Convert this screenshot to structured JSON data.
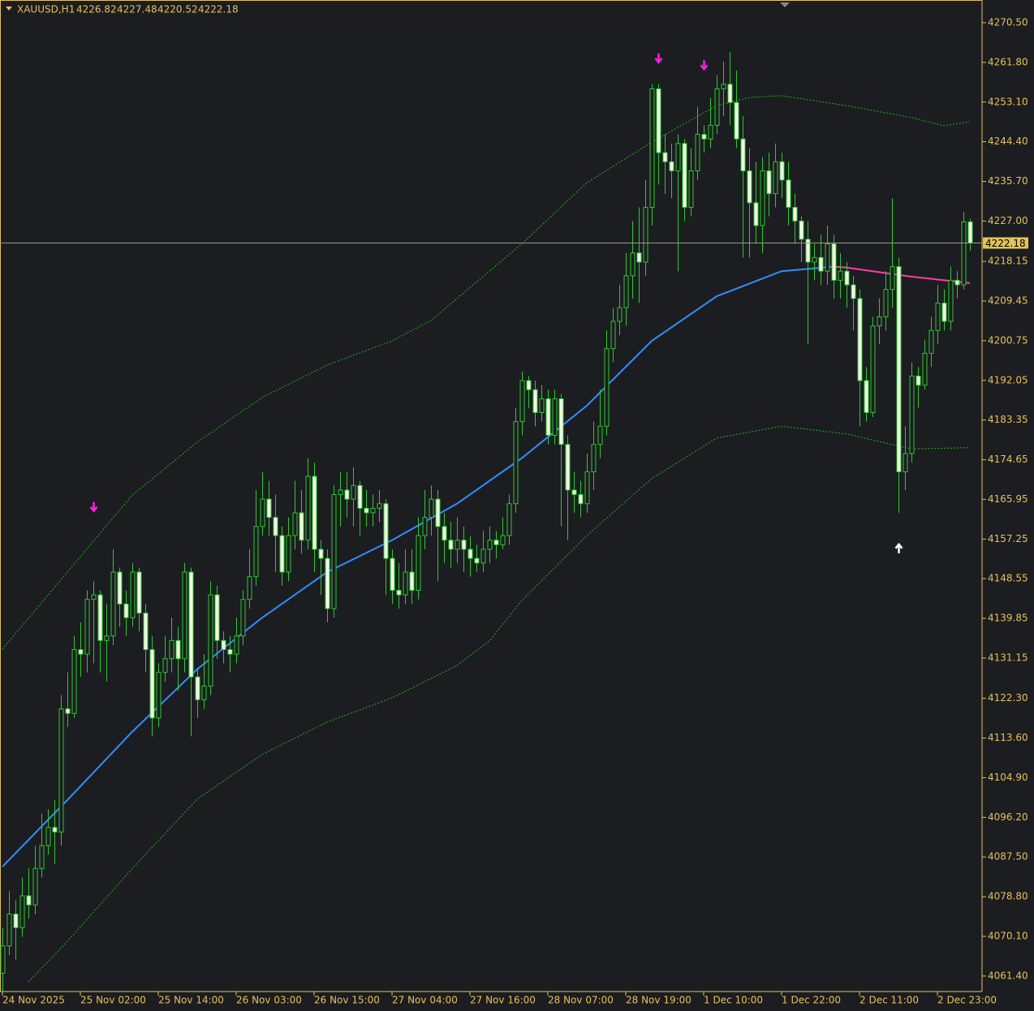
{
  "chart_data": {
    "type": "candlestick",
    "symbol": "XAUUSD,H1",
    "background": "#1c1d21",
    "axis_color": "#e3c25a",
    "candle_color": "#2ec82e",
    "bull_fill": "#1c1d21",
    "bear_fill": "#f2ffe6",
    "grid": false,
    "categories": [
      "24 Nov 2025",
      null,
      null,
      null,
      null,
      null,
      null,
      null,
      null,
      null,
      null,
      null,
      "25 Nov 02:00",
      null,
      null,
      null,
      null,
      null,
      null,
      null,
      null,
      null,
      null,
      null,
      "25 Nov 14:00",
      null,
      null,
      null,
      null,
      null,
      null,
      null,
      null,
      null,
      null,
      null,
      "26 Nov 03:00",
      null,
      null,
      null,
      null,
      null,
      null,
      null,
      null,
      null,
      null,
      null,
      "26 Nov 15:00",
      null,
      null,
      null,
      null,
      null,
      null,
      null,
      null,
      null,
      null,
      null,
      "27 Nov 04:00",
      null,
      null,
      null,
      null,
      null,
      null,
      null,
      null,
      null,
      null,
      null,
      "27 Nov 16:00",
      null,
      null,
      null,
      null,
      null,
      null,
      null,
      null,
      null,
      null,
      null,
      "28 Nov 07:00",
      null,
      null,
      null,
      null,
      null,
      null,
      null,
      null,
      null,
      null,
      null,
      "28 Nov 19:00",
      null,
      null,
      null,
      null,
      null,
      null,
      null,
      null,
      null,
      null,
      null,
      "1 Dec 10:00",
      null,
      null,
      null,
      null,
      null,
      null,
      null,
      null,
      null,
      null,
      null,
      "1 Dec 22:00",
      null,
      null,
      null,
      null,
      null,
      null,
      null,
      null,
      null,
      null,
      null,
      "2 Dec 11:00",
      null,
      null,
      null,
      null,
      null,
      null,
      null,
      null,
      null,
      null,
      null,
      "2 Dec 23:00",
      null,
      null,
      null,
      null,
      null
    ],
    "open": [
      4062,
      4068,
      4075,
      4072,
      4079,
      4077,
      4085,
      4090,
      4094,
      4093,
      4120,
      4119,
      4133,
      4132,
      4144,
      4145,
      4135,
      4136,
      4150,
      4143,
      4140,
      4150,
      4141,
      4133,
      4118,
      4128,
      4131,
      4135,
      4131,
      4150,
      4127,
      4122,
      4125,
      4145,
      4135,
      4133,
      4132,
      4136,
      4144,
      4149,
      4160,
      4166,
      4162,
      4158,
      4150,
      4158,
      4163,
      4157,
      4171,
      4155,
      4153,
      4142,
      4167,
      4168,
      4166,
      4169,
      4164,
      4163,
      4164,
      4165,
      4153,
      4146,
      4145,
      4150,
      4146,
      4158,
      4162,
      4166,
      4160,
      4157,
      4155,
      4157,
      4155,
      4153,
      4152,
      4155,
      4157,
      4156,
      4158,
      4165,
      4183,
      4192,
      4190,
      4185,
      4188,
      4180,
      4188,
      4178,
      4168,
      4167,
      4165,
      4172,
      4178,
      4182,
      4199,
      4205,
      4208,
      4215,
      4220,
      4218,
      4230,
      4256,
      4242,
      4240,
      4238,
      4244,
      4230,
      4238,
      4246,
      4245,
      4248,
      4256,
      4257,
      4253,
      4245,
      4238,
      4231,
      4226,
      4238,
      4233,
      4240,
      4236,
      4230,
      4227,
      4223,
      4218,
      4219,
      4216,
      4222,
      4214,
      4216,
      4213,
      4210,
      4192,
      4185,
      4204,
      4206,
      4212,
      4217,
      4172,
      4176,
      4193,
      4191,
      4198,
      4203,
      4209,
      4205,
      4214,
      4213,
      4226.82
    ],
    "high": [
      4072,
      4080,
      4078,
      4083,
      4085,
      4090,
      4097,
      4098,
      4100,
      4123,
      4128,
      4136,
      4139,
      4146,
      4148,
      4146,
      4143,
      4155,
      4151,
      4146,
      4152,
      4151,
      4143,
      4136,
      4130,
      4136,
      4140,
      4138,
      4152,
      4151,
      4129,
      4132,
      4148,
      4147,
      4137,
      4136,
      4140,
      4146,
      4155,
      4168,
      4172,
      4170,
      4167,
      4160,
      4162,
      4170,
      4168,
      4175,
      4174,
      4157,
      4155,
      4169,
      4172,
      4172,
      4173,
      4170,
      4168,
      4167,
      4168,
      4166,
      4155,
      4152,
      4155,
      4155,
      4162,
      4168,
      4169,
      4168,
      4163,
      4161,
      4162,
      4160,
      4158,
      4156,
      4159,
      4160,
      4159,
      4162,
      4167,
      4186,
      4194,
      4193,
      4192,
      4191,
      4190,
      4190,
      4189,
      4180,
      4172,
      4170,
      4176,
      4183,
      4190,
      4203,
      4208,
      4213,
      4220,
      4227,
      4230,
      4236,
      4257,
      4257,
      4246,
      4244,
      4246,
      4245,
      4243,
      4252,
      4248,
      4254,
      4259,
      4262,
      4264,
      4260,
      4250,
      4243,
      4240,
      4241,
      4242,
      4244,
      4242,
      4240,
      4233,
      4228,
      4227,
      4222,
      4224,
      4226,
      4224,
      4220,
      4218,
      4215,
      4212,
      4195,
      4206,
      4210,
      4216,
      4232,
      4219,
      4182,
      4196,
      4195,
      4201,
      4206,
      4213,
      4212,
      4217,
      4216,
      4229,
      4227.48
    ],
    "low": [
      4058,
      4066,
      4065,
      4070,
      4074,
      4075,
      4083,
      4088,
      4086,
      4090,
      4116,
      4118,
      4127,
      4128,
      4130,
      4128,
      4126,
      4134,
      4138,
      4136,
      4138,
      4137,
      4128,
      4114,
      4116,
      4126,
      4128,
      4124,
      4128,
      4114,
      4118,
      4120,
      4123,
      4131,
      4130,
      4128,
      4130,
      4134,
      4142,
      4147,
      4158,
      4158,
      4150,
      4147,
      4148,
      4155,
      4154,
      4155,
      4150,
      4145,
      4139,
      4140,
      4160,
      4162,
      4160,
      4158,
      4160,
      4160,
      4161,
      4145,
      4143,
      4142,
      4143,
      4143,
      4144,
      4155,
      4158,
      4148,
      4152,
      4151,
      4152,
      4150,
      4149,
      4150,
      4150,
      4152,
      4153,
      4155,
      4156,
      4163,
      4180,
      4186,
      4182,
      4183,
      4178,
      4178,
      4160,
      4157,
      4163,
      4162,
      4163,
      4168,
      4175,
      4180,
      4196,
      4202,
      4204,
      4210,
      4209,
      4215,
      4226,
      4235,
      4233,
      4232,
      4216,
      4227,
      4228,
      4236,
      4242,
      4243,
      4246,
      4250,
      4248,
      4243,
      4219,
      4219,
      4222,
      4220,
      4228,
      4230,
      4232,
      4226,
      4222,
      4218,
      4200,
      4214,
      4213,
      4213,
      4210,
      4210,
      4208,
      4203,
      4182,
      4183,
      4184,
      4200,
      4203,
      4208,
      4163,
      4168,
      4174,
      4186,
      4190,
      4195,
      4200,
      4203,
      4203,
      4210,
      4212,
      4220.52
    ],
    "close": [
      4068,
      4075,
      4072,
      4079,
      4077,
      4085,
      4090,
      4094,
      4093,
      4120,
      4119,
      4133,
      4132,
      4144,
      4145,
      4135,
      4136,
      4150,
      4143,
      4140,
      4150,
      4141,
      4133,
      4118,
      4128,
      4131,
      4135,
      4131,
      4150,
      4127,
      4122,
      4125,
      4145,
      4135,
      4133,
      4132,
      4136,
      4144,
      4149,
      4160,
      4166,
      4162,
      4158,
      4150,
      4158,
      4163,
      4157,
      4171,
      4155,
      4153,
      4142,
      4167,
      4168,
      4166,
      4169,
      4164,
      4163,
      4164,
      4165,
      4153,
      4146,
      4145,
      4150,
      4146,
      4158,
      4162,
      4166,
      4160,
      4157,
      4155,
      4157,
      4155,
      4153,
      4152,
      4155,
      4157,
      4156,
      4158,
      4165,
      4183,
      4192,
      4190,
      4185,
      4188,
      4180,
      4188,
      4178,
      4168,
      4167,
      4165,
      4172,
      4178,
      4182,
      4199,
      4205,
      4208,
      4215,
      4220,
      4218,
      4230,
      4256,
      4242,
      4240,
      4238,
      4244,
      4230,
      4238,
      4246,
      4245,
      4248,
      4256,
      4257,
      4253,
      4245,
      4238,
      4231,
      4226,
      4238,
      4233,
      4240,
      4236,
      4230,
      4227,
      4223,
      4218,
      4219,
      4216,
      4222,
      4214,
      4216,
      4213,
      4210,
      4192,
      4185,
      4204,
      4206,
      4212,
      4217,
      4172,
      4176,
      4193,
      4191,
      4198,
      4203,
      4209,
      4205,
      4214,
      4213,
      4226.82,
      4222.18
    ],
    "lines": [
      {
        "color": "#2f8fff",
        "dashed": false,
        "x": [
          0,
          10,
          20,
          30,
          40,
          50,
          60,
          70,
          80,
          90,
          100,
          110,
          120,
          128
        ],
        "values": [
          4085.4,
          4100,
          4115,
          4128.7,
          4140,
          4150,
          4157,
          4165,
          4175,
          4186.5,
          4200.7,
          4210.5,
          4216,
          4217
        ]
      },
      {
        "color": "#ff3fa0",
        "dashed": false,
        "x": [
          128,
          130,
          140,
          149
        ],
        "values": [
          4217,
          4216.8,
          4214.8,
          4213.4
        ]
      },
      {
        "color": "#22b022",
        "dashed": true,
        "x": [
          0,
          20,
          30,
          40,
          50,
          60,
          66,
          80,
          90,
          100,
          110,
          115,
          120,
          130,
          140,
          145,
          149
        ],
        "values": [
          4133.1,
          4166.9,
          4178.5,
          4188.3,
          4195.4,
          4200.7,
          4205.2,
          4222,
          4235.4,
          4244.3,
          4252.3,
          4254.1,
          4254.5,
          4252.3,
          4249.7,
          4247.9,
          4248.8
        ]
      },
      {
        "color": "#22b022",
        "dashed": true,
        "x": [
          4,
          10,
          20,
          30,
          40,
          50,
          60,
          70,
          75,
          80,
          90,
          100,
          110,
          120,
          130,
          140,
          149
        ],
        "values": [
          4060.1,
          4069,
          4085,
          4100.2,
          4110,
          4117.1,
          4122.4,
          4129.5,
          4134.9,
          4143.8,
          4158,
          4170.5,
          4179.4,
          4182,
          4180.3,
          4177,
          4177.3
        ]
      }
    ],
    "signals": [
      {
        "x": 14,
        "price": 4164.3,
        "direction": "down",
        "color": "#ff1ee0"
      },
      {
        "x": 101,
        "price": 4262.7,
        "direction": "down",
        "color": "#ff1ee0"
      },
      {
        "x": 108,
        "price": 4261.2,
        "direction": "down",
        "color": "#ff1ee0"
      },
      {
        "x": 138,
        "price": 4155.2,
        "direction": "up",
        "color": "#ffffff"
      }
    ],
    "ylim": [
      4058.0,
      4275.48
    ],
    "yticks": [
      {
        "value": 4270.5,
        "label": "4270.50"
      },
      {
        "value": 4261.8,
        "label": "4261.80"
      },
      {
        "value": 4253.1,
        "label": "4253.10"
      },
      {
        "value": 4244.4,
        "label": "4244.40"
      },
      {
        "value": 4235.7,
        "label": "4235.70"
      },
      {
        "value": 4227,
        "label": "4227.00"
      },
      4218.15,
      4209.45,
      4200.75,
      4192.05,
      4183.35,
      4174.65,
      4165.95,
      4157.25,
      4148.55,
      4139.85,
      4131.15,
      {
        "value": 4122.3,
        "label": "4122.30"
      },
      {
        "value": 4113.6,
        "label": "4113.60"
      },
      {
        "value": 4104.9,
        "label": "4104.90"
      },
      {
        "value": 4096.2,
        "label": "4096.20"
      },
      {
        "value": 4087.5,
        "label": "4087.50"
      },
      {
        "value": 4078.8,
        "label": "4078.80"
      },
      {
        "value": 4070.1,
        "label": "4070.10"
      },
      {
        "value": 4061.4,
        "label": "4061.40"
      }
    ]
  }
}
